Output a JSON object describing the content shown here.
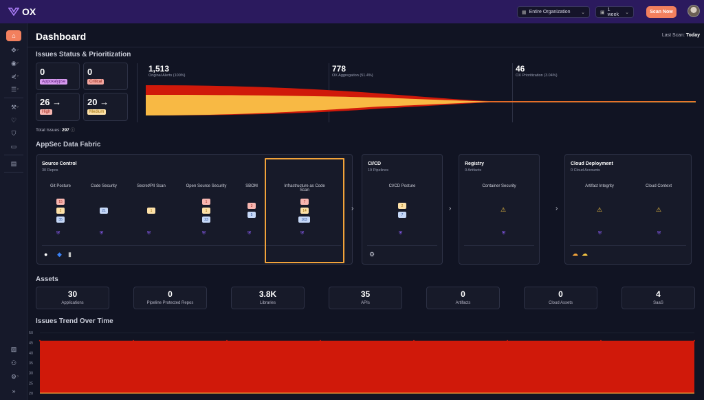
{
  "topbar": {
    "brand": "OX",
    "org_select": "Entire Organization",
    "time_select": "1 week",
    "scan_button": "Scan Now"
  },
  "header": {
    "title": "Dashboard",
    "last_scan_label": "Last Scan:",
    "last_scan_value": "Today"
  },
  "issues": {
    "section_title": "Issues Status & Prioritization",
    "severities": [
      {
        "count": "0",
        "label": "Appoxalypse",
        "color": "#d89bf0"
      },
      {
        "count": "0",
        "label": "Critical",
        "color": "#f4a7a0"
      },
      {
        "count": "26",
        "label": "High",
        "color": "#f7b6b0"
      },
      {
        "count": "20",
        "label": "Medium",
        "color": "#fde1a8"
      }
    ],
    "arrow": "→",
    "total_label": "Total Issues:",
    "total_value": "297",
    "funnel": [
      {
        "value": "1,513",
        "label": "Original Alerts (100%)"
      },
      {
        "value": "778",
        "label": "OX Aggregation (51.4%)"
      },
      {
        "value": "46",
        "label": "OX Prioritization (3.04%)"
      }
    ]
  },
  "fabric": {
    "section_title": "AppSec Data Fabric",
    "source": {
      "title": "Source Control",
      "subtitle": "30 Repos",
      "columns": [
        {
          "name": "Git Posture",
          "chips": [
            "15",
            "2",
            "35"
          ]
        },
        {
          "name": "Code Security",
          "chips": [
            "21"
          ]
        },
        {
          "name": "Secret/PII Scan",
          "chips": [
            "1"
          ]
        },
        {
          "name": "Open Source Security",
          "chips": [
            "1",
            "1",
            "23"
          ]
        },
        {
          "name": "SBOM",
          "chips": [
            "3",
            "5"
          ]
        },
        {
          "name": "Infrastructure as Code Scan",
          "chips": [
            "7",
            "14",
            "103"
          ]
        }
      ]
    },
    "cicd": {
      "title": "CI/CD",
      "subtitle": "19 Pipelines",
      "column": "CI/CD Posture",
      "chips": [
        "2",
        "7"
      ]
    },
    "registry": {
      "title": "Registry",
      "subtitle": "0 Artifacts",
      "column": "Container Security"
    },
    "cloud": {
      "title": "Cloud Deployment",
      "subtitle": "0 Cloud Accounts",
      "columns": [
        "Artifact Integrity",
        "Cloud Context"
      ]
    }
  },
  "assets": {
    "section_title": "Assets",
    "items": [
      {
        "value": "30",
        "label": "Applications"
      },
      {
        "value": "0",
        "label": "Pipeline Protected Repos"
      },
      {
        "value": "3.8K",
        "label": "Libraries"
      },
      {
        "value": "35",
        "label": "APIs"
      },
      {
        "value": "0",
        "label": "Artifacts"
      },
      {
        "value": "0",
        "label": "Cloud Assets"
      },
      {
        "value": "4",
        "label": "SaaS"
      }
    ]
  },
  "trend": {
    "section_title": "Issues Trend Over Time",
    "colors": {
      "fill": "#d0190a",
      "line": "#f2a33a"
    }
  },
  "chart_data": {
    "type": "area",
    "title": "Issues Trend Over Time",
    "yticks": [
      "50",
      "45",
      "40",
      "35",
      "30",
      "25",
      "20"
    ],
    "ylim": [
      20,
      50
    ],
    "series": [
      {
        "values": [
          46,
          46,
          46,
          46,
          46,
          46,
          46,
          46
        ]
      }
    ],
    "grid": true,
    "legend": "none"
  },
  "icons": {
    "sidebar": [
      "home-icon",
      "git-icon",
      "lightning-icon",
      "pipeline-icon",
      "list-icon",
      "tools-icon",
      "heart-icon",
      "shield-icon",
      "box-icon",
      "document-icon"
    ],
    "sidebar_bottom": [
      "report-icon",
      "users-icon",
      "settings-icon",
      "expand-icon"
    ]
  }
}
